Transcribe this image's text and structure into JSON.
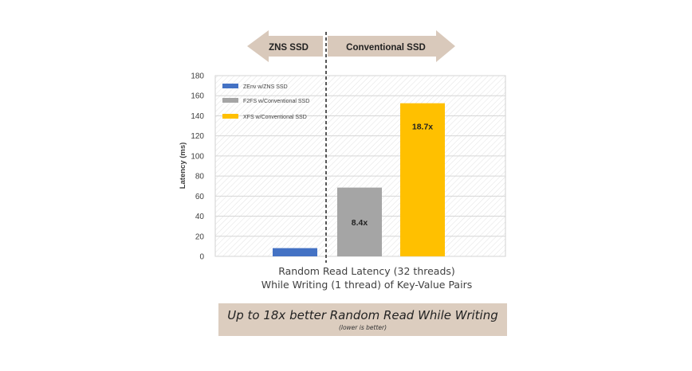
{
  "arrows": {
    "left_label": "ZNS SSD",
    "right_label": "Conventional SSD",
    "color": "#d9c9bb"
  },
  "chart_data": {
    "type": "bar",
    "categories": [
      "ZEnv w/ZNS SSD",
      "F2FS w/Conventional SSD",
      "XFS w/Conventional SSD"
    ],
    "values": [
      8.2,
      68.5,
      152.5
    ],
    "colors": [
      "#4472c4",
      "#a5a5a5",
      "#ffc000"
    ],
    "bar_labels": [
      "",
      "8.4x",
      "18.7x"
    ],
    "legend": [
      "ZEnv w/ZNS SSD",
      "F2FS w/Conventional SSD",
      "XFS w/Conventional SSD"
    ],
    "legend_position": "top-left",
    "ylabel": "Latency (ms)",
    "ylim": [
      0,
      180
    ],
    "yticks": [
      0,
      20,
      40,
      60,
      80,
      100,
      120,
      140,
      160,
      180
    ],
    "xlabel_line1": "Random Read Latency (32 threads)",
    "xlabel_line2": "While Writing (1 thread) of Key-Value Pairs",
    "grid": true
  },
  "summary": {
    "main": "Up to 18x better Random Read While Writing",
    "sub": "(lower is better)"
  }
}
